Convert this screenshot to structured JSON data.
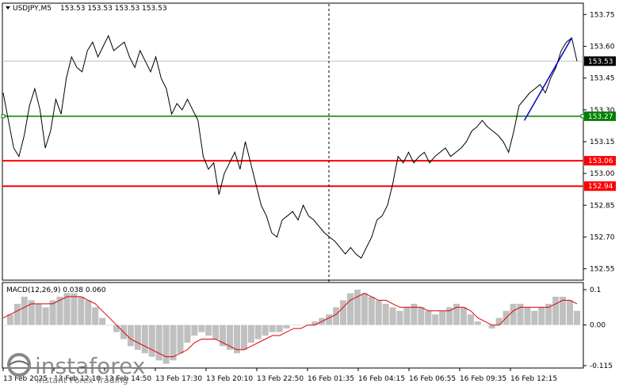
{
  "header": {
    "symbol_timeframe": "USDJPY,M5",
    "quote": "153.53 153.53 153.53 153.53"
  },
  "macd_header": "MACD(12,26,9) 0.038 0.060",
  "watermark": {
    "brand": "instaforex",
    "tagline": "Instant Forex Trading"
  },
  "colors": {
    "price_line": "#000000",
    "macd_histogram": "#c0c0c0",
    "signal_line": "#e00000",
    "support_line": "#008000",
    "level_line": "#ff0000",
    "trend_line": "#0000cc"
  },
  "chart_data": [
    {
      "type": "line",
      "title": "USDJPY,M5",
      "ylim": [
        152.5,
        153.8
      ],
      "y_ticks": [
        "153.75",
        "153.60",
        "153.45",
        "153.30",
        "153.15",
        "153.00",
        "152.85",
        "152.70",
        "152.55"
      ],
      "x_ticks": [
        "13 Feb 2025",
        "13 Feb 12:10",
        "13 Feb 14:50",
        "13 Feb 17:30",
        "13 Feb 20:10",
        "13 Feb 22:50",
        "16 Feb 01:35",
        "16 Feb 04:15",
        "16 Feb 06:55",
        "16 Feb 09:35",
        "16 Feb 12:15"
      ],
      "series": [
        {
          "values": [
            153.38,
            153.25,
            153.12,
            153.08,
            153.18,
            153.32,
            153.4,
            153.3,
            153.12,
            153.2,
            153.35,
            153.28,
            153.45,
            153.55,
            153.5,
            153.48,
            153.58,
            153.62,
            153.55,
            153.6,
            153.65,
            153.58,
            153.6,
            153.62,
            153.55,
            153.5,
            153.58,
            153.53,
            153.48,
            153.55,
            153.45,
            153.4,
            153.28,
            153.33,
            153.3,
            153.35,
            153.3,
            153.25,
            153.08,
            153.02,
            153.05,
            152.9,
            153.0,
            153.05,
            153.1,
            153.02,
            153.15,
            153.05,
            152.95,
            152.85,
            152.8,
            152.72,
            152.7,
            152.78,
            152.8,
            152.82,
            152.78,
            152.85,
            152.8,
            152.78,
            152.75,
            152.72,
            152.7,
            152.68,
            152.65,
            152.62,
            152.65,
            152.62,
            152.6,
            152.65,
            152.7,
            152.78,
            152.8,
            152.85,
            152.95,
            153.08,
            153.05,
            153.1,
            153.05,
            153.08,
            153.1,
            153.05,
            153.08,
            153.1,
            153.12,
            153.08,
            153.1,
            153.12,
            153.15,
            153.2,
            153.22,
            153.25,
            153.22,
            153.2,
            153.18,
            153.15,
            153.1,
            153.2,
            153.32,
            153.35,
            153.38,
            153.4,
            153.42,
            153.38,
            153.45,
            153.5,
            153.58,
            153.62,
            153.64,
            153.53
          ],
          "x": [
            "13 Feb 2025",
            "",
            "",
            "",
            "",
            "",
            "",
            "",
            "",
            "",
            "13 Feb 12:10",
            "",
            "",
            "",
            "",
            "",
            "",
            "",
            "",
            "",
            "13 Feb 14:50",
            "",
            "",
            "",
            "",
            "",
            "",
            "",
            "",
            "",
            "13 Feb 17:30",
            "",
            "",
            "",
            "",
            "",
            "",
            "",
            "",
            "",
            "13 Feb 20:10",
            "",
            "",
            "",
            "",
            "",
            "",
            "",
            "",
            "",
            "13 Feb 22:50",
            "",
            "",
            "",
            "",
            "",
            "",
            "",
            "",
            "",
            "16 Feb 01:35",
            "",
            "",
            "",
            "",
            "",
            "",
            "",
            "",
            "",
            "16 Feb 04:15",
            "",
            "",
            "",
            "",
            "",
            "",
            "",
            "",
            "",
            "16 Feb 06:55",
            "",
            "",
            "",
            "",
            "",
            "",
            "",
            "",
            "",
            "16 Feb 09:35",
            "",
            "",
            "",
            "",
            "",
            "",
            "",
            "",
            "",
            "16 Feb 12:15",
            "",
            "",
            "",
            "",
            "",
            "",
            "",
            "",
            ""
          ]
        }
      ],
      "horizontal_levels": [
        {
          "value": 153.27,
          "label": "153.27",
          "color": "#008000"
        },
        {
          "value": 153.06,
          "label": "153.06",
          "color": "#ff0000"
        },
        {
          "value": 152.94,
          "label": "152.94",
          "color": "#ff0000"
        }
      ],
      "current_price": {
        "value": 153.53,
        "label": "153.53"
      },
      "trend_line": {
        "from_index": 99,
        "to_index": 108,
        "from_value": 153.25,
        "to_value": 153.64
      }
    },
    {
      "type": "bar",
      "title": "MACD(12,26,9) 0.038 0.060",
      "ylim": [
        -0.115,
        0.1
      ],
      "y_ticks": [
        "0.1",
        "0.00",
        "-0.115"
      ],
      "series": [
        {
          "name": "MACD",
          "values": [
            0.0,
            0.03,
            0.06,
            0.08,
            0.07,
            0.06,
            0.05,
            0.07,
            0.08,
            0.09,
            0.09,
            0.08,
            0.07,
            0.05,
            0.02,
            0.0,
            -0.02,
            -0.04,
            -0.06,
            -0.07,
            -0.08,
            -0.09,
            -0.1,
            -0.11,
            -0.1,
            -0.08,
            -0.05,
            -0.03,
            -0.02,
            -0.03,
            -0.04,
            -0.06,
            -0.07,
            -0.08,
            -0.07,
            -0.05,
            -0.04,
            -0.03,
            -0.02,
            -0.02,
            -0.01,
            0.0,
            0.0,
            0.0,
            0.01,
            0.02,
            0.03,
            0.05,
            0.07,
            0.09,
            0.1,
            0.09,
            0.08,
            0.07,
            0.06,
            0.05,
            0.04,
            0.05,
            0.06,
            0.05,
            0.04,
            0.03,
            0.04,
            0.05,
            0.06,
            0.05,
            0.03,
            0.01,
            0.0,
            -0.01,
            0.02,
            0.04,
            0.06,
            0.06,
            0.05,
            0.04,
            0.05,
            0.06,
            0.08,
            0.08,
            0.07,
            0.04
          ]
        },
        {
          "name": "Signal",
          "values": [
            0.02,
            0.03,
            0.04,
            0.05,
            0.06,
            0.06,
            0.06,
            0.06,
            0.07,
            0.08,
            0.08,
            0.08,
            0.07,
            0.06,
            0.04,
            0.02,
            0.0,
            -0.02,
            -0.04,
            -0.05,
            -0.06,
            -0.07,
            -0.08,
            -0.09,
            -0.09,
            -0.08,
            -0.07,
            -0.05,
            -0.04,
            -0.04,
            -0.04,
            -0.05,
            -0.06,
            -0.07,
            -0.07,
            -0.06,
            -0.05,
            -0.04,
            -0.03,
            -0.03,
            -0.02,
            -0.01,
            -0.01,
            0.0,
            0.0,
            0.01,
            0.02,
            0.03,
            0.05,
            0.07,
            0.08,
            0.09,
            0.08,
            0.07,
            0.07,
            0.06,
            0.05,
            0.05,
            0.05,
            0.05,
            0.04,
            0.04,
            0.04,
            0.04,
            0.05,
            0.05,
            0.04,
            0.02,
            0.01,
            0.0,
            0.0,
            0.02,
            0.04,
            0.05,
            0.05,
            0.05,
            0.05,
            0.05,
            0.06,
            0.07,
            0.07,
            0.06
          ]
        }
      ]
    }
  ]
}
